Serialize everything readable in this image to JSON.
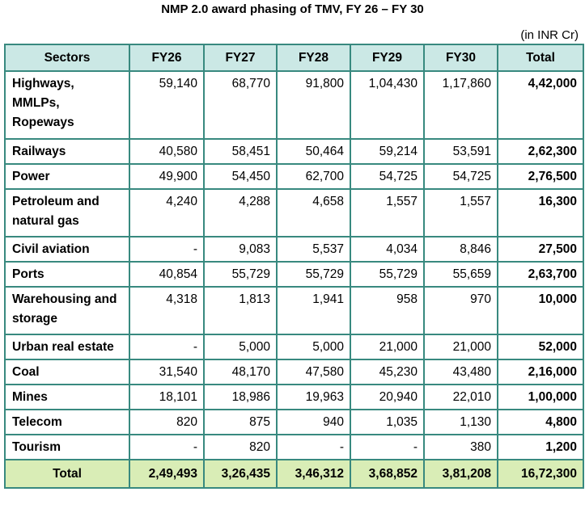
{
  "title": "NMP 2.0 award phasing of TMV, FY 26 – FY 30",
  "unit": "(in INR Cr)",
  "headers": [
    "Sectors",
    "FY26",
    "FY27",
    "FY28",
    "FY29",
    "FY30",
    "Total"
  ],
  "rows": [
    {
      "sector": "Highways, MMLPs, Ropeways",
      "values": [
        "59,140",
        "68,770",
        "91,800",
        "1,04,430",
        "1,17,860"
      ],
      "total": "4,42,000"
    },
    {
      "sector": "Railways",
      "values": [
        "40,580",
        "58,451",
        "50,464",
        "59,214",
        "53,591"
      ],
      "total": "2,62,300"
    },
    {
      "sector": "Power",
      "values": [
        "49,900",
        "54,450",
        "62,700",
        "54,725",
        "54,725"
      ],
      "total": "2,76,500"
    },
    {
      "sector": "Petroleum and natural gas",
      "values": [
        "4,240",
        "4,288",
        "4,658",
        "1,557",
        "1,557"
      ],
      "total": "16,300"
    },
    {
      "sector": "Civil aviation",
      "values": [
        "-",
        "9,083",
        "5,537",
        "4,034",
        "8,846"
      ],
      "total": "27,500"
    },
    {
      "sector": "Ports",
      "values": [
        "40,854",
        "55,729",
        "55,729",
        "55,729",
        "55,659"
      ],
      "total": "2,63,700"
    },
    {
      "sector": "Warehousing and storage",
      "values": [
        "4,318",
        "1,813",
        "1,941",
        "958",
        "970"
      ],
      "total": "10,000"
    },
    {
      "sector": "Urban real estate",
      "values": [
        "-",
        "5,000",
        "5,000",
        "21,000",
        "21,000"
      ],
      "total": "52,000"
    },
    {
      "sector": "Coal",
      "values": [
        "31,540",
        "48,170",
        "47,580",
        "45,230",
        "43,480"
      ],
      "total": "2,16,000"
    },
    {
      "sector": "Mines",
      "values": [
        "18,101",
        "18,986",
        "19,963",
        "20,940",
        "22,010"
      ],
      "total": "1,00,000"
    },
    {
      "sector": "Telecom",
      "values": [
        "820",
        "875",
        "940",
        "1,035",
        "1,130"
      ],
      "total": "4,800"
    },
    {
      "sector": "Tourism",
      "values": [
        "-",
        "820",
        "-",
        "-",
        "380"
      ],
      "total": "1,200"
    }
  ],
  "footer": {
    "label": "Total",
    "values": [
      "2,49,493",
      "3,26,435",
      "3,46,312",
      "3,68,852",
      "3,81,208"
    ],
    "total": "16,72,300"
  }
}
